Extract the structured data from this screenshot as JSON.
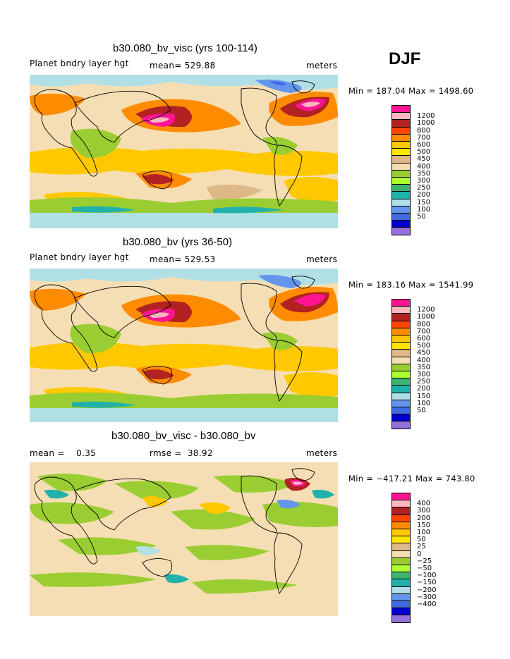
{
  "season": "DJF",
  "panels": [
    {
      "title": "b30.080_bv_visc (yrs 100-114)",
      "left_label": "Planet bndry layer hgt",
      "mean_label": "mean= 529.88",
      "units": "meters",
      "minmax": "Min = 187.04 Max = 1498.60",
      "legend": {
        "colors": [
          "#ff1493",
          "#ffb6c1",
          "#b22222",
          "#ff4500",
          "#ff8c00",
          "#ffc800",
          "#ffe600",
          "#deb887",
          "#f5deb3",
          "#9acd32",
          "#adff2f",
          "#3cb371",
          "#20b2aa",
          "#b0e0e6",
          "#6495ed",
          "#4169e1",
          "#0000cd",
          "#9370db"
        ],
        "labels": [
          "1200",
          "1000",
          "800",
          "700",
          "600",
          "500",
          "450",
          "400",
          "350",
          "300",
          "250",
          "200",
          "150",
          "100",
          "50"
        ]
      }
    },
    {
      "title": "b30.080_bv (yrs 36-50)",
      "left_label": "Planet bndry layer hgt",
      "mean_label": "mean= 529.53",
      "units": "meters",
      "minmax": "Min = 183.16 Max = 1541.99",
      "legend": {
        "colors": [
          "#ff1493",
          "#ffb6c1",
          "#b22222",
          "#ff4500",
          "#ff8c00",
          "#ffc800",
          "#ffe600",
          "#deb887",
          "#f5deb3",
          "#9acd32",
          "#adff2f",
          "#3cb371",
          "#20b2aa",
          "#b0e0e6",
          "#6495ed",
          "#4169e1",
          "#0000cd",
          "#9370db"
        ],
        "labels": [
          "1200",
          "1000",
          "800",
          "700",
          "600",
          "500",
          "450",
          "400",
          "350",
          "300",
          "250",
          "200",
          "150",
          "100",
          "50"
        ]
      }
    },
    {
      "title": "b30.080_bv_visc - b30.080_bv",
      "mean_label": "mean =    0.35",
      "rmse_label": "rmse =  38.92",
      "units": "meters",
      "minmax": "Min = −417.21 Max = 743.80",
      "legend": {
        "colors": [
          "#ff1493",
          "#ffb6c1",
          "#b22222",
          "#ff4500",
          "#ff8c00",
          "#ffc800",
          "#ffe600",
          "#deb887",
          "#f5deb3",
          "#9acd32",
          "#adff2f",
          "#3cb371",
          "#20b2aa",
          "#b0e0e6",
          "#6495ed",
          "#4169e1",
          "#0000cd",
          "#9370db"
        ],
        "labels": [
          "400",
          "300",
          "200",
          "150",
          "100",
          "50",
          "25",
          "0",
          "−25",
          "−50",
          "−100",
          "−150",
          "−200",
          "−300",
          "−400"
        ]
      }
    }
  ]
}
